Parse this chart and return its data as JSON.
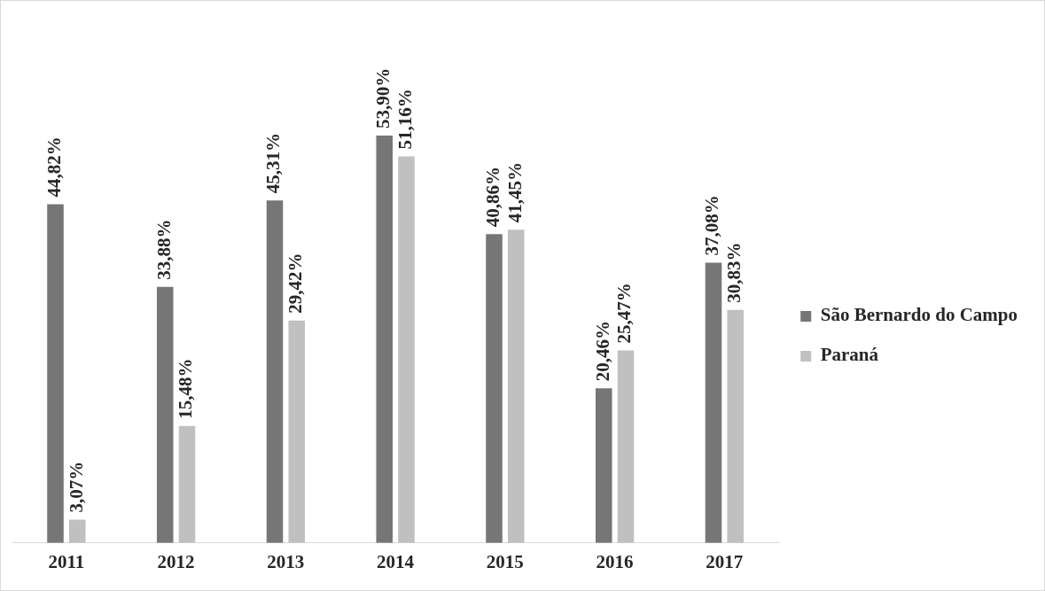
{
  "chart_data": {
    "type": "bar",
    "categories": [
      "2011",
      "2012",
      "2013",
      "2014",
      "2015",
      "2016",
      "2017"
    ],
    "series": [
      {
        "name": "São Bernardo do Campo",
        "color": "#767676",
        "values": [
          44.82,
          33.88,
          45.31,
          53.9,
          40.86,
          20.46,
          37.08
        ],
        "value_labels": [
          "44,82%",
          "33,88%",
          "45,31%",
          "53,90%",
          "40,86%",
          "20,46%",
          "37,08%"
        ]
      },
      {
        "name": "Paraná",
        "color": "#c0c0c0",
        "values": [
          3.07,
          15.48,
          29.42,
          51.16,
          41.45,
          25.47,
          30.83
        ],
        "value_labels": [
          "3,07%",
          "15,48%",
          "29,42%",
          "51,16%",
          "41,45%",
          "25,47%",
          "30,83%"
        ]
      }
    ],
    "legend": "right",
    "grid": false
  }
}
